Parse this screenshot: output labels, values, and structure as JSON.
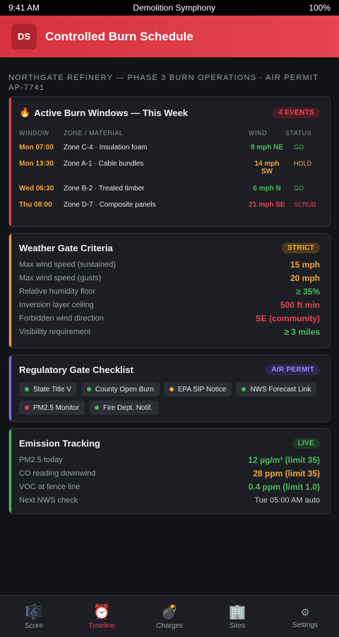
{
  "status_bar": {
    "time": "9:41 AM",
    "app_name": "Demolition Symphony",
    "battery": "100%"
  },
  "header": {
    "logo_text": "DS",
    "title": "Controlled Burn Schedule"
  },
  "subtitle": "NORTHGATE REFINERY — PHASE 3 BURN OPERATIONS · AIR PERMIT AP-7741",
  "burn_windows": {
    "icon": "fire-icon",
    "title": "Active Burn Windows — This Week",
    "badge": "4 EVENTS",
    "columns": [
      "WINDOW",
      "ZONE / MATERIAL",
      "WIND",
      "STATUS"
    ],
    "rows": [
      {
        "window": "Mon 07:00",
        "zone": "Zone C-4 · Insulation foam",
        "wind": "8 mph NE",
        "status": "GO",
        "color": "#4cbb5f"
      },
      {
        "window": "Mon 13:30",
        "zone": "Zone A-1 · Cable bundles",
        "wind": "14 mph SW",
        "status": "HOLD",
        "color": "#f3a63d"
      },
      {
        "window": "Wed 06:30",
        "zone": "Zone B-2 · Treated timber",
        "wind": "6 mph N",
        "status": "GO",
        "color": "#4cbb5f"
      },
      {
        "window": "Thu 08:00",
        "zone": "Zone D-7 · Composite panels",
        "wind": "21 mph SE",
        "status": "SCRUB",
        "color": "#e54452"
      }
    ]
  },
  "weather": {
    "title": "Weather Gate Criteria",
    "badge": "STRICT",
    "items": [
      {
        "label": "Max wind speed (sustained)",
        "value": "15 mph",
        "color": "#f3a63d"
      },
      {
        "label": "Max wind speed (gusts)",
        "value": "20 mph",
        "color": "#f3a63d"
      },
      {
        "label": "Relative humidity floor",
        "value": "≥ 35%",
        "color": "#4cbb5f"
      },
      {
        "label": "Inversion layer ceiling",
        "value": "500 ft min",
        "color": "#e54452"
      },
      {
        "label": "Forbidden wind direction",
        "value": "SE (community)",
        "color": "#e54452"
      },
      {
        "label": "Visibility requirement",
        "value": "≥ 3 miles",
        "color": "#4cbb5f"
      }
    ]
  },
  "regulatory": {
    "title": "Regulatory Gate Checklist",
    "badge": "AIR PERMIT",
    "chips": [
      {
        "label": "State Title V",
        "color": "#4cbb5f"
      },
      {
        "label": "County Open Burn",
        "color": "#4cbb5f"
      },
      {
        "label": "EPA SIP Notice",
        "color": "#f3a63d"
      },
      {
        "label": "NWS Forecast Link",
        "color": "#4cbb5f"
      },
      {
        "label": "PM2.5 Monitor",
        "color": "#e54452"
      },
      {
        "label": "Fire Dept. Notif.",
        "color": "#4cbb5f"
      }
    ]
  },
  "emission": {
    "title": "Emission Tracking",
    "badge": "LIVE",
    "items": [
      {
        "label": "PM2.5 today",
        "value": "12 µg/m³ (limit 35)",
        "color": "#4cbb5f"
      },
      {
        "label": "CO reading downwind",
        "value": "28 ppm (limit 35)",
        "color": "#f3a63d"
      },
      {
        "label": "VOC at fence line",
        "value": "0.4 ppm (limit 1.0)",
        "color": "#4cbb5f"
      },
      {
        "label": "Next NWS check",
        "value": "Tue 05:00 AM auto",
        "color": "#c9ccd2"
      }
    ]
  },
  "colors": {
    "accent_red": "#e54452",
    "amber": "#f3a63d",
    "green": "#4cbb5f",
    "purple": "#8b6cf0"
  },
  "tabs": [
    {
      "label": "Score",
      "icon": "music-score-icon",
      "glyph": "🎼",
      "active": false
    },
    {
      "label": "Timeline",
      "icon": "alarm-clock-icon",
      "glyph": "⏰",
      "active": true
    },
    {
      "label": "Charges",
      "icon": "bomb-icon",
      "glyph": "💣",
      "active": false
    },
    {
      "label": "Sites",
      "icon": "building-icon",
      "glyph": "🏢",
      "active": false
    },
    {
      "label": "Settings",
      "icon": "gear-icon",
      "glyph": "⚙",
      "active": false
    }
  ]
}
